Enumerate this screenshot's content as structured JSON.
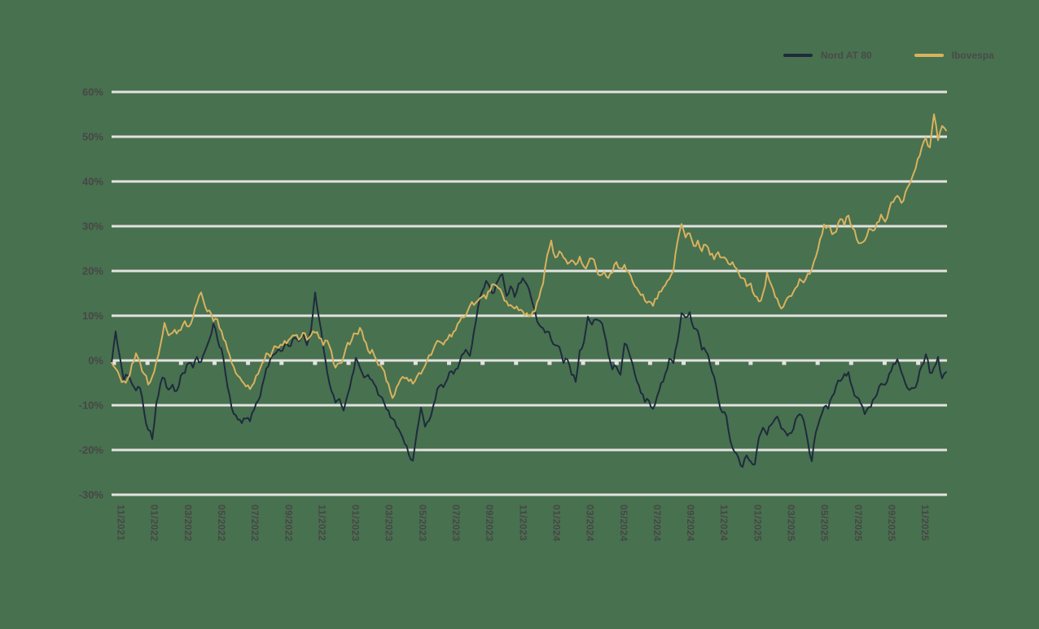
{
  "colors": {
    "background": "#48714F",
    "gridline": "#E3E2E0",
    "tick_label": "#474747",
    "series_nord": "#1E2B3D",
    "series_ibovespa": "#D8B25E"
  },
  "legend": {
    "items": [
      {
        "label": "Nord AT 80",
        "color": "#1E2B3D"
      },
      {
        "label": "Ibovespa",
        "color": "#D8B25E"
      }
    ]
  },
  "chart_data": {
    "type": "line",
    "title": "",
    "xlabel": "",
    "ylabel": "",
    "y_axis": {
      "unit": "%",
      "min": -30,
      "max": 60,
      "tick_values": [
        60,
        50,
        40,
        30,
        20,
        10,
        0,
        -10,
        -20,
        -30
      ],
      "tick_labels": [
        "60%",
        "50%",
        "40%",
        "30%",
        "20%",
        "10%",
        "0%",
        "-10%",
        "-20%",
        "-30%"
      ]
    },
    "x_axis": {
      "labels": [
        "11/2021",
        "01/2022",
        "03/2022",
        "05/2022",
        "07/2022",
        "09/2022",
        "11/2022",
        "01/2023",
        "03/2023",
        "05/2023",
        "07/2023",
        "09/2023",
        "11/2023",
        "01/2024",
        "03/2024",
        "05/2024",
        "07/2024",
        "09/2024",
        "11/2024",
        "01/2025",
        "03/2025",
        "05/2025",
        "07/2025",
        "09/2025",
        "11/2025"
      ]
    },
    "layout": {
      "grid": "horizontal",
      "legend_position": "top-right",
      "x_label_rotation_deg": 90,
      "noise_amplitude": 1.6
    },
    "series": [
      {
        "name": "Nord AT 80",
        "color": "#1E2B3D",
        "values": [
          -0.7,
          6.5,
          1.0,
          -4.5,
          -3.4,
          -5.2,
          -6.7,
          -6.2,
          -11.5,
          -15.5,
          -17.6,
          -9.5,
          -5.2,
          -4.0,
          -6.5,
          -5.4,
          -6.8,
          -3.4,
          -2.8,
          -0.5,
          -1.6,
          0.8,
          -0.3,
          2.2,
          4.6,
          8.2,
          4.8,
          2.6,
          -3.0,
          -7.8,
          -11.9,
          -13.2,
          -14.0,
          -13.0,
          -13.6,
          -11.0,
          -9.0,
          -5.6,
          -1.8,
          0.3,
          1.4,
          2.6,
          2.2,
          3.8,
          3.2,
          5.1,
          4.3,
          6.3,
          3.4,
          6.8,
          15.2,
          9.2,
          3.0,
          -2.8,
          -6.8,
          -9.4,
          -8.6,
          -11.2,
          -7.6,
          -3.8,
          0.6,
          -1.6,
          -3.8,
          -3.2,
          -4.4,
          -6.0,
          -8.0,
          -9.6,
          -11.2,
          -13.0,
          -14.8,
          -16.2,
          -18.6,
          -21.0,
          -22.4,
          -16.0,
          -10.5,
          -14.8,
          -13.4,
          -10.2,
          -6.4,
          -5.4,
          -5.0,
          -2.6,
          -3.0,
          -1.8,
          1.2,
          2.4,
          1.0,
          6.4,
          11.8,
          15.4,
          17.8,
          16.2,
          15.2,
          18.0,
          19.3,
          14.4,
          16.6,
          14.2,
          17.2,
          18.4,
          17.0,
          14.2,
          11.2,
          8.0,
          7.2,
          6.5,
          4.6,
          3.4,
          3.0,
          -0.6,
          0.2,
          -3.2,
          -4.8,
          2.2,
          4.0,
          9.8,
          8.0,
          9.2,
          8.8,
          6.2,
          1.4,
          -2.0,
          -1.4,
          -3.2,
          3.8,
          2.0,
          -0.8,
          -4.6,
          -7.2,
          -9.3,
          -9.0,
          -10.8,
          -8.0,
          -5.0,
          -3.0,
          0.4,
          -0.6,
          4.2,
          10.6,
          9.6,
          10.8,
          7.2,
          6.6,
          2.4,
          2.0,
          -0.8,
          -3.6,
          -8.4,
          -11.6,
          -12.4,
          -18.0,
          -20.4,
          -21.8,
          -23.8,
          -21.2,
          -22.6,
          -23.2,
          -17.2,
          -15.0,
          -16.6,
          -14.4,
          -13.0,
          -13.6,
          -15.4,
          -16.8,
          -16.2,
          -13.2,
          -12.0,
          -13.4,
          -18.0,
          -22.5,
          -16.0,
          -13.0,
          -10.4,
          -10.8,
          -8.0,
          -5.6,
          -4.6,
          -3.0,
          -2.6,
          -6.2,
          -8.2,
          -9.6,
          -12.0,
          -10.4,
          -8.8,
          -7.6,
          -5.2,
          -5.4,
          -3.0,
          -0.8,
          0.3,
          -2.6,
          -5.2,
          -6.6,
          -6.2,
          -4.6,
          -1.2,
          1.4,
          -2.8,
          -1.6,
          0.8,
          -4.0,
          -2.6
        ]
      },
      {
        "name": "Ibovespa",
        "color": "#D8B25E",
        "values": [
          -0.5,
          -1.8,
          -3.6,
          -4.6,
          -4.0,
          -0.8,
          1.6,
          -0.4,
          -3.0,
          -5.4,
          -3.6,
          -0.2,
          3.4,
          8.4,
          5.6,
          6.2,
          6.0,
          6.8,
          8.8,
          7.6,
          9.6,
          12.9,
          15.2,
          12.0,
          11.2,
          8.8,
          9.2,
          6.6,
          4.2,
          1.2,
          -1.4,
          -3.4,
          -4.6,
          -5.8,
          -6.4,
          -5.0,
          -3.0,
          -0.6,
          1.6,
          0.8,
          3.2,
          2.8,
          3.4,
          3.8,
          5.0,
          5.6,
          4.6,
          6.2,
          4.6,
          5.6,
          6.2,
          5.0,
          3.4,
          4.4,
          2.0,
          -1.6,
          -0.6,
          0.8,
          4.0,
          4.6,
          6.0,
          7.3,
          4.6,
          2.2,
          2.4,
          0.2,
          -1.0,
          -2.4,
          -5.2,
          -8.4,
          -6.0,
          -4.2,
          -4.0,
          -4.6,
          -5.2,
          -3.6,
          -3.0,
          -1.2,
          1.2,
          2.4,
          4.4,
          4.0,
          4.4,
          5.8,
          6.4,
          8.2,
          9.8,
          10.0,
          12.2,
          12.4,
          13.4,
          14.2,
          13.8,
          15.6,
          17.0,
          16.2,
          14.8,
          13.2,
          12.4,
          11.6,
          11.2,
          11.0,
          10.6,
          10.0,
          11.0,
          14.0,
          17.2,
          23.5,
          26.8,
          23.0,
          24.4,
          23.0,
          21.6,
          22.4,
          21.4,
          23.2,
          21.0,
          21.6,
          22.8,
          20.8,
          19.0,
          19.8,
          18.4,
          19.6,
          22.0,
          20.6,
          21.4,
          19.8,
          17.6,
          16.2,
          14.6,
          13.4,
          13.2,
          12.2,
          13.8,
          15.4,
          16.8,
          18.2,
          20.0,
          26.5,
          30.5,
          27.5,
          28.4,
          25.6,
          26.8,
          24.4,
          25.8,
          23.6,
          22.6,
          24.2,
          23.0,
          22.6,
          21.4,
          21.0,
          19.6,
          18.4,
          16.6,
          17.2,
          14.4,
          13.2,
          15.0,
          19.6,
          17.0,
          14.2,
          12.4,
          12.0,
          14.0,
          14.4,
          16.2,
          18.2,
          17.4,
          19.4,
          20.4,
          23.2,
          27.0,
          30.4,
          30.0,
          28.2,
          28.8,
          31.6,
          30.2,
          32.4,
          29.6,
          27.2,
          26.2,
          26.8,
          29.4,
          29.0,
          30.8,
          32.6,
          31.0,
          33.8,
          35.4,
          36.8,
          35.2,
          37.6,
          39.4,
          41.8,
          45.0,
          47.6,
          49.8,
          47.6,
          55.0,
          49.2,
          52.4,
          51.4
        ]
      }
    ]
  }
}
